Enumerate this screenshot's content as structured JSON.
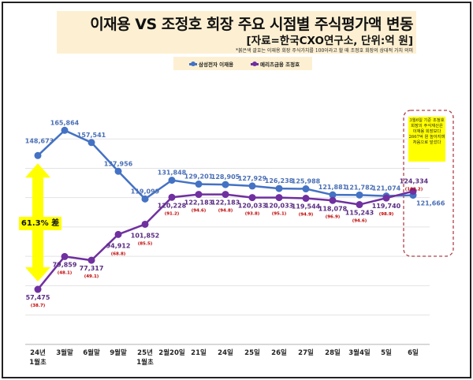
{
  "header": {
    "title": "이재용 VS 조정호 회장 주요 시점별 주식평가액 변동",
    "source": "[자료=한국CXO연구소, 단위:억 원]",
    "note": "*붉은색 괄호는 이재용 회장 주식가치를 100이라고 할 때 조정호 회장의 상대적 가치 의미"
  },
  "callout": "3월6일 기준 조정호 회장의 주식재산은 이재용 회장보다 2667억 원 높아지며 처음으로 앞섰다",
  "gap_label": "61.3% 差",
  "chart_data": {
    "type": "line",
    "title": "이재용 VS 조정호 회장 주요 시점별 주식평가액 변동",
    "categories": [
      "24년\n1월초",
      "3월말",
      "6월말",
      "9월말",
      "25년\n1월초",
      "2월20일",
      "21일",
      "24일",
      "25일",
      "26일",
      "27일",
      "28일",
      "3월4일",
      "5일",
      "6일"
    ],
    "series": [
      {
        "name": "삼성전자 이재용",
        "color": "#4472c4",
        "values": [
          148673,
          165864,
          157541,
          137956,
          119099,
          131848,
          129201,
          128905,
          127929,
          126238,
          125988,
          121881,
          121782,
          121074,
          121666
        ]
      },
      {
        "name": "메리츠금융 조정호",
        "color": "#7030a0",
        "values": [
          57475,
          79859,
          77317,
          94912,
          101852,
          120228,
          122183,
          122183,
          120033,
          120033,
          119544,
          118078,
          115243,
          119740,
          124334
        ],
        "relative": [
          "38.7",
          "48.1",
          "49.1",
          "68.8",
          "85.5",
          "91.2",
          "94.6",
          "94.8",
          "93.8",
          "95.1",
          "94.9",
          "96.9",
          "94.6",
          "98.9",
          "102.2"
        ]
      }
    ],
    "ylim": [
      20000,
      180000
    ],
    "grid": true,
    "legend": "top-center"
  }
}
